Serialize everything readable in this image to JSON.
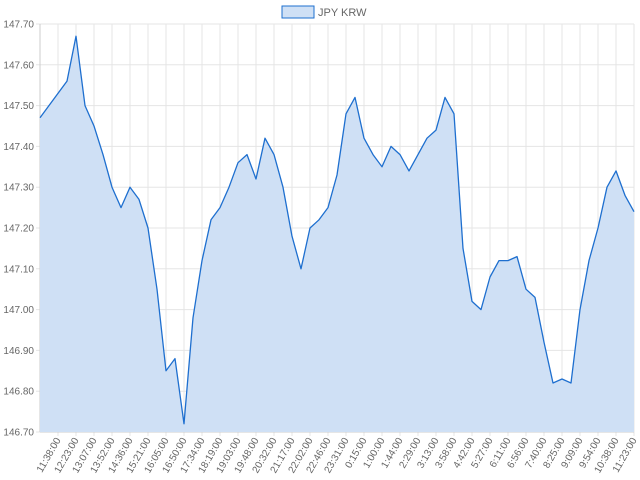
{
  "chart_data": {
    "type": "area",
    "title": "",
    "xlabel": "",
    "ylabel": "",
    "legend": {
      "position": "top",
      "entries": [
        "JPY KRW"
      ]
    },
    "grid": true,
    "ylim": [
      146.7,
      147.7
    ],
    "y_ticks": [
      "147.70",
      "147.60",
      "147.50",
      "147.40",
      "147.30",
      "147.20",
      "147.10",
      "147.00",
      "146.90",
      "146.80",
      "146.70"
    ],
    "x_ticks": [
      "11:38:00",
      "12:23:00",
      "13:07:00",
      "13:52:00",
      "14:36:00",
      "15:21:00",
      "16:05:00",
      "16:50:00",
      "17:34:00",
      "18:19:00",
      "19:03:00",
      "19:48:00",
      "20:32:00",
      "21:17:00",
      "22:02:00",
      "22:46:00",
      "23:31:00",
      "0:15:00",
      "1:00:00",
      "1:44:00",
      "2:29:00",
      "3:13:00",
      "3:58:00",
      "4:42:00",
      "5:27:00",
      "6:11:00",
      "6:56:00",
      "7:40:00",
      "8:25:00",
      "9:09:00",
      "9:54:00",
      "10:38:00",
      "11:23:00"
    ],
    "series": [
      {
        "name": "JPY KRW",
        "color": "#1e6fcf",
        "fill": "#cfe0f5",
        "x": [
          "11:38:00",
          "12:00:00",
          "12:23:00",
          "12:45:00",
          "13:07:00",
          "13:30:00",
          "13:52:00",
          "14:14:00",
          "14:36:00",
          "14:58:00",
          "15:21:00",
          "15:43:00",
          "16:05:00",
          "16:27:00",
          "16:50:00",
          "17:12:00",
          "17:34:00",
          "17:56:00",
          "18:19:00",
          "18:41:00",
          "19:03:00",
          "19:25:00",
          "19:48:00",
          "20:10:00",
          "20:32:00",
          "20:54:00",
          "21:17:00",
          "21:39:00",
          "22:02:00",
          "22:24:00",
          "22:46:00",
          "23:08:00",
          "23:31:00",
          "23:53:00",
          "0:15:00",
          "0:37:00",
          "1:00:00",
          "1:22:00",
          "1:44:00",
          "2:06:00",
          "2:29:00",
          "2:51:00",
          "3:13:00",
          "3:35:00",
          "3:58:00",
          "4:20:00",
          "4:42:00",
          "5:04:00",
          "5:27:00",
          "5:49:00",
          "6:11:00",
          "6:33:00",
          "6:56:00",
          "7:18:00",
          "7:40:00",
          "8:02:00",
          "8:25:00",
          "8:47:00",
          "9:09:00",
          "9:31:00",
          "9:54:00",
          "10:16:00",
          "10:38:00",
          "11:00:00",
          "11:23:00"
        ],
        "values": [
          147.47,
          147.56,
          147.67,
          147.5,
          147.45,
          147.38,
          147.3,
          147.25,
          147.3,
          147.27,
          147.2,
          147.05,
          146.85,
          146.88,
          146.72,
          146.98,
          147.12,
          147.22,
          147.25,
          147.3,
          147.36,
          147.38,
          147.32,
          147.42,
          147.38,
          147.3,
          147.18,
          147.1,
          147.2,
          147.22,
          147.25,
          147.33,
          147.48,
          147.52,
          147.42,
          147.38,
          147.35,
          147.4,
          147.38,
          147.34,
          147.38,
          147.42,
          147.44,
          147.52,
          147.48,
          147.15,
          147.02,
          147.0,
          147.08,
          147.12,
          147.12,
          147.13,
          147.05,
          147.03,
          146.92,
          146.82,
          146.83,
          146.82,
          147.0,
          147.12,
          147.2,
          147.3,
          147.34,
          147.28,
          147.24
        ]
      }
    ]
  }
}
